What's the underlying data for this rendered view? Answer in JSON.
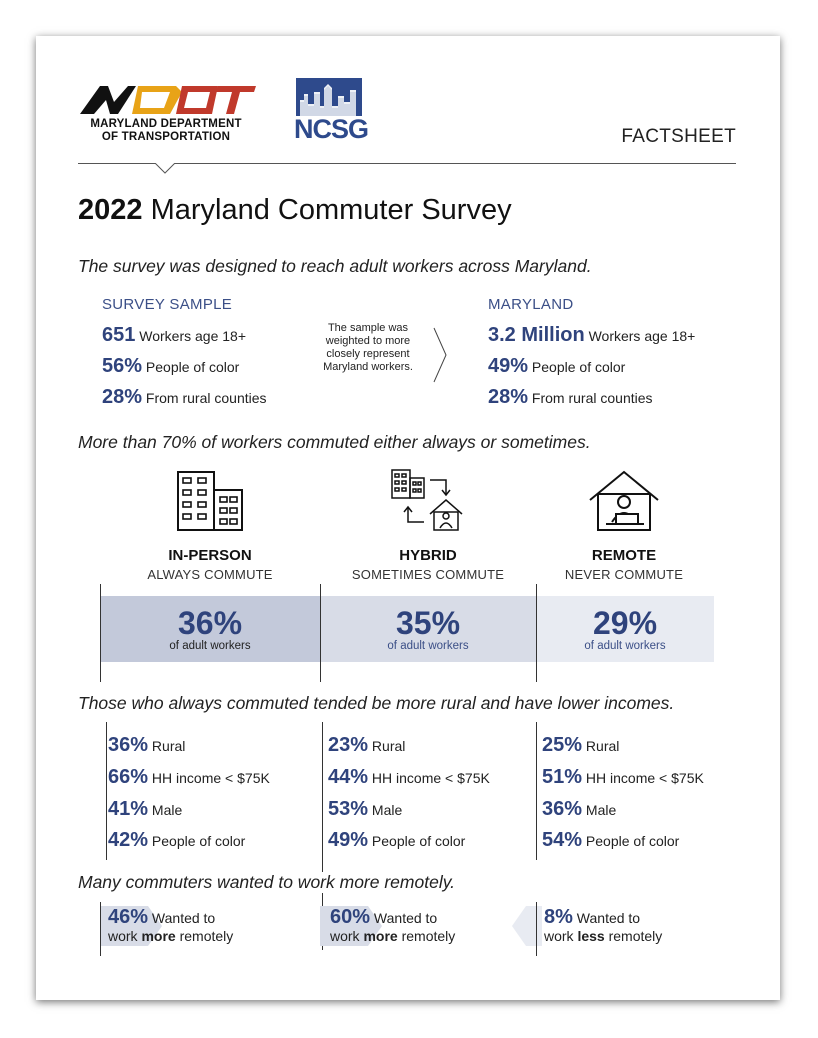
{
  "header": {
    "logo_org_line1": "MARYLAND DEPARTMENT",
    "logo_org_line2": "OF TRANSPORTATION",
    "ncsg_label": "NCSG",
    "doc_type": "FACTSHEET"
  },
  "title": {
    "year": "2022",
    "text": "Maryland Commuter Survey"
  },
  "intro": "The survey was designed to reach adult workers across Maryland.",
  "sample": {
    "heading": "SURVEY SAMPLE",
    "stats": [
      {
        "value": "651",
        "label": "Workers age 18+"
      },
      {
        "value": "56%",
        "label": "People of color"
      },
      {
        "value": "28%",
        "label": "From rural counties"
      }
    ]
  },
  "weighting_note": "The sample was weighted to more closely represent Maryland workers.",
  "maryland": {
    "heading": "MARYLAND",
    "stats": [
      {
        "value": "3.2 Million",
        "label": "Workers age 18+"
      },
      {
        "value": "49%",
        "label": "People of color"
      },
      {
        "value": "28%",
        "label": "From rural counties"
      }
    ]
  },
  "commute_heading": "More than 70% of workers commuted either always or sometimes.",
  "categories": [
    {
      "title": "IN-PERSON",
      "subtitle": "ALWAYS COMMUTE",
      "value": "36%",
      "value_label": "of adult workers",
      "fill": "#c3c9da",
      "share": 36
    },
    {
      "title": "HYBRID",
      "subtitle": "SOMETIMES COMMUTE",
      "value": "35%",
      "value_label": "of adult workers",
      "fill": "#d8dce7",
      "share": 35
    },
    {
      "title": "REMOTE",
      "subtitle": "NEVER COMMUTE",
      "value": "29%",
      "value_label": "of adult workers",
      "fill": "#e8ebf2",
      "share": 29
    }
  ],
  "demographics_heading": "Those who always commuted tended be more rural and have lower incomes.",
  "demographics": [
    [
      {
        "value": "36%",
        "label": "Rural"
      },
      {
        "value": "66%",
        "label": "HH income < $75K"
      },
      {
        "value": "41%",
        "label": "Male"
      },
      {
        "value": "42%",
        "label": "People of color"
      }
    ],
    [
      {
        "value": "23%",
        "label": "Rural"
      },
      {
        "value": "44%",
        "label": "HH income < $75K"
      },
      {
        "value": "53%",
        "label": "Male"
      },
      {
        "value": "49%",
        "label": "People of color"
      }
    ],
    [
      {
        "value": "25%",
        "label": "Rural"
      },
      {
        "value": "51%",
        "label": "HH income < $75K"
      },
      {
        "value": "36%",
        "label": "Male"
      },
      {
        "value": "54%",
        "label": "People of color"
      }
    ]
  ],
  "remote_heading": "Many commuters wanted to work more remotely.",
  "wants": [
    {
      "value": "46%",
      "pre": "Wanted to",
      "line2_pre": "work ",
      "emph": "more",
      "line2_post": " remotely"
    },
    {
      "value": "60%",
      "pre": "Wanted to",
      "line2_pre": "work ",
      "emph": "more",
      "line2_post": " remotely"
    },
    {
      "value": "8%",
      "pre": "Wanted to",
      "line2_pre": "work ",
      "emph": "less",
      "line2_post": " remotely"
    }
  ],
  "colors": {
    "accent": "#2f437c",
    "ncsg_blue": "#2e4a8c",
    "mdot_red": "#c0392b",
    "mdot_gold": "#e8a317"
  }
}
